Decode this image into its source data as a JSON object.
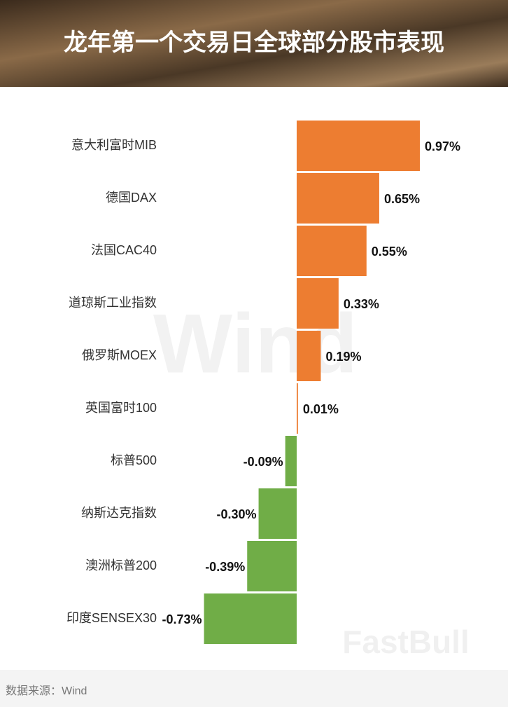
{
  "chart_data": {
    "type": "bar",
    "orientation": "horizontal",
    "title": "龙年第一个交易日全球部分股市表现",
    "categories": [
      "意大利富时MIB",
      "德国DAX",
      "法国CAC40",
      "道琼斯工业指数",
      "俄罗斯MOEX",
      "英国富时100",
      "标普500",
      "纳斯达克指数",
      "澳洲标普200",
      "印度SENSEX30"
    ],
    "values": [
      0.97,
      0.65,
      0.55,
      0.33,
      0.19,
      0.01,
      -0.09,
      -0.3,
      -0.39,
      -0.73
    ],
    "value_labels": [
      "0.97%",
      "0.65%",
      "0.55%",
      "0.33%",
      "0.19%",
      "0.01%",
      "-0.09%",
      "-0.30%",
      "-0.39%",
      "-0.73%"
    ],
    "positive_color": "#ed7d31",
    "negative_color": "#70ad47",
    "source": "数据来源：Wind",
    "watermarks": [
      "Wind",
      "FastBull"
    ]
  }
}
